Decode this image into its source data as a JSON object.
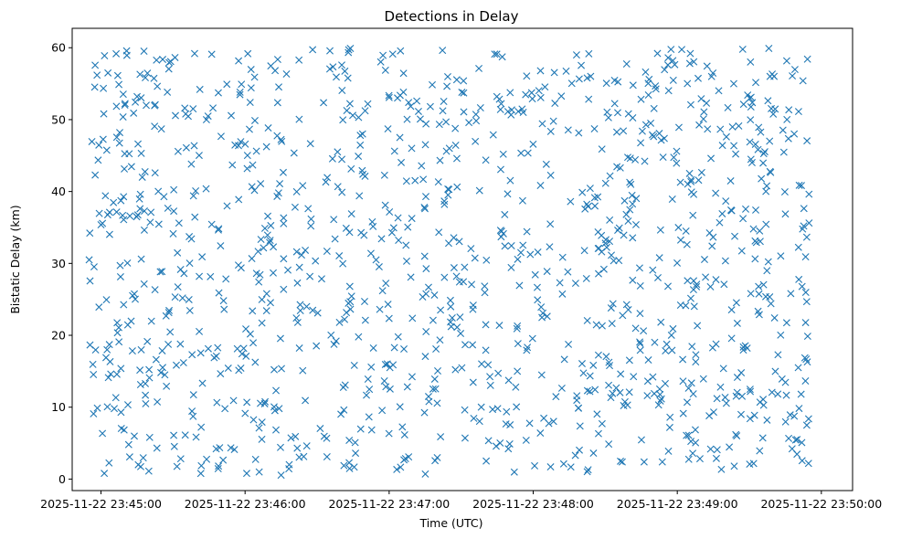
{
  "chart_data": {
    "type": "scatter",
    "title": "Detections in Delay",
    "xlabel": "Time (UTC)",
    "ylabel": "Bistatic Delay (km)",
    "x_ticks": [
      "2025-11-22 23:45:00",
      "2025-11-22 23:46:00",
      "2025-11-22 23:47:00",
      "2025-11-22 23:48:00",
      "2025-11-22 23:49:00",
      "2025-11-22 23:50:00"
    ],
    "y_ticks": [
      0,
      10,
      20,
      30,
      40,
      50,
      60
    ],
    "xlim": [
      "2025-11-22 23:44:48",
      "2025-11-22 23:50:13"
    ],
    "ylim": [
      -1.6,
      62.7
    ],
    "marker": "x",
    "marker_color": "#1f77b4",
    "grid": false,
    "series": [
      {
        "point_count": 1200,
        "time_range": [
          "2025-11-22 23:44:55",
          "2025-11-22 23:49:55"
        ],
        "delay_range_km": [
          0.5,
          60
        ]
      }
    ]
  }
}
